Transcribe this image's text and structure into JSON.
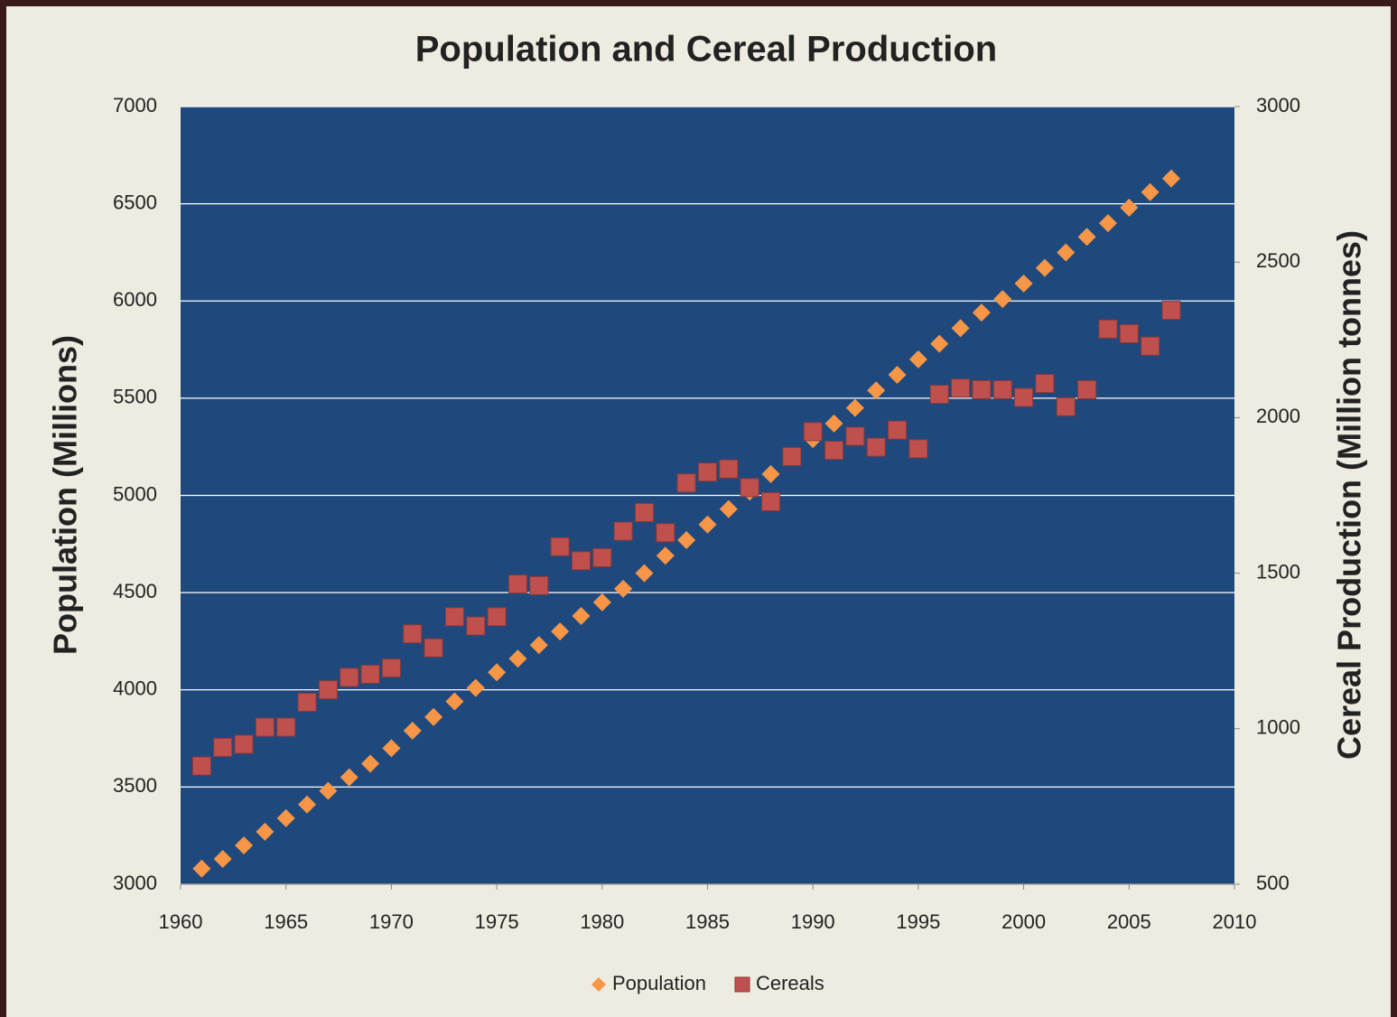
{
  "chart_data": {
    "type": "scatter",
    "title": "Population and Cereal Production",
    "y_label": "Population (Millions)",
    "y2_label": "Cereal Production (Million tonnes)",
    "x": [
      1961,
      1962,
      1963,
      1964,
      1965,
      1966,
      1967,
      1968,
      1969,
      1970,
      1971,
      1972,
      1973,
      1974,
      1975,
      1976,
      1977,
      1978,
      1979,
      1980,
      1981,
      1982,
      1983,
      1984,
      1985,
      1986,
      1987,
      1988,
      1989,
      1990,
      1991,
      1992,
      1993,
      1994,
      1995,
      1996,
      1997,
      1998,
      1999,
      2000,
      2001,
      2002,
      2003,
      2004,
      2005,
      2006,
      2007
    ],
    "series": [
      {
        "name": "Population",
        "color": "#f79646",
        "marker": "diamond",
        "values": [
          3080,
          3130,
          3200,
          3270,
          3340,
          3410,
          3480,
          3550,
          3620,
          3700,
          3790,
          3860,
          3940,
          4010,
          4090,
          4160,
          4230,
          4300,
          4380,
          4450,
          4520,
          4600,
          4690,
          4770,
          4850,
          4930,
          5020,
          5110,
          5200,
          5290,
          5370,
          5450,
          5540,
          5620,
          5700,
          5780,
          5860,
          5940,
          6010,
          6090,
          6170,
          6250,
          6330,
          6400,
          6480,
          6560,
          6630
        ]
      },
      {
        "name": "Cereals",
        "color": "#c0504d",
        "marker": "square",
        "axis": "y2",
        "values": [
          880,
          940,
          950,
          1005,
          1005,
          1085,
          1125,
          1165,
          1175,
          1195,
          1305,
          1260,
          1360,
          1330,
          1360,
          1465,
          1460,
          1585,
          1540,
          1550,
          1635,
          1695,
          1630,
          1790,
          1825,
          1835,
          1775,
          1730,
          1875,
          1955,
          1895,
          1940,
          1905,
          1960,
          1900,
          2075,
          2095,
          2090,
          2090,
          2065,
          2110,
          2035,
          2090,
          2285,
          2270,
          2230,
          2345
        ]
      }
    ],
    "xlim": [
      1960,
      2010
    ],
    "xticks": [
      1960,
      1965,
      1970,
      1975,
      1980,
      1985,
      1990,
      1995,
      2000,
      2005,
      2010
    ],
    "ylim": [
      3000,
      7000
    ],
    "yticks": [
      3000,
      3500,
      4000,
      4500,
      5000,
      5500,
      6000,
      6500,
      7000
    ],
    "y2lim": [
      500,
      3000
    ],
    "y2ticks": [
      500,
      1000,
      1500,
      2000,
      2500,
      3000
    ],
    "grid": true,
    "legend": "bottom",
    "plot_background": "#1f497d"
  }
}
